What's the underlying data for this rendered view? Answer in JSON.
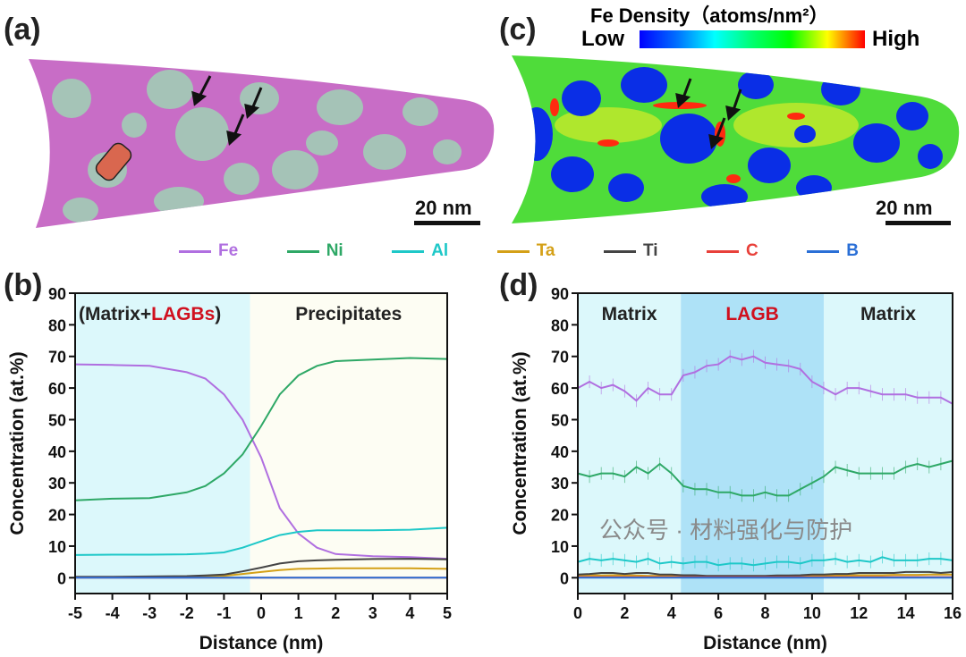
{
  "panels": {
    "a": "(a)",
    "b": "(b)",
    "c": "(c)",
    "d": "(d)"
  },
  "colorbar": {
    "title": "Fe Density（atoms/nm²）",
    "low": "Low",
    "high": "High",
    "colors": [
      "#0000ff",
      "#00ffff",
      "#00ff00",
      "#ffff00",
      "#ff0000"
    ]
  },
  "scalebar": {
    "a": "20 nm",
    "c": "20 nm"
  },
  "legend": [
    {
      "name": "Fe",
      "color": "#b06fe0"
    },
    {
      "name": "Ni",
      "color": "#2ea866"
    },
    {
      "name": "Al",
      "color": "#1ec8c8"
    },
    {
      "name": "Ta",
      "color": "#d4a017"
    },
    {
      "name": "Ti",
      "color": "#444444"
    },
    {
      "name": "C",
      "color": "#e8403a"
    },
    {
      "name": "B",
      "color": "#2a6fd6"
    }
  ],
  "watermark": "公众号 · 材料强化与防护",
  "chart_data": [
    {
      "type": "line",
      "panel": "(b)",
      "xlabel": "Distance (nm)",
      "ylabel": "Concentration (at.%)",
      "xlim": [
        -5,
        5
      ],
      "ylim": [
        -5,
        90
      ],
      "xticks": [
        -5,
        -4,
        -3,
        -2,
        -1,
        0,
        1,
        2,
        3,
        4,
        5
      ],
      "yticks": [
        0,
        10,
        20,
        30,
        40,
        50,
        60,
        70,
        80,
        90
      ],
      "regions": [
        {
          "label": "(Matrix+",
          "label_red": "LAGBs",
          "label_end": ")",
          "from": -5,
          "to": -0.3,
          "color": "#dcf8fb"
        },
        {
          "label": "Precipitates",
          "from": -0.3,
          "to": 5,
          "color": "#fdfdf3"
        }
      ],
      "x": [
        -5,
        -4,
        -3,
        -2,
        -1.5,
        -1,
        -0.5,
        0,
        0.5,
        1,
        1.5,
        2,
        3,
        4,
        5
      ],
      "series": [
        {
          "name": "Fe",
          "values": [
            67.5,
            67.3,
            67,
            65,
            63,
            58,
            50,
            38,
            22,
            14,
            9.5,
            7.5,
            6.8,
            6.5,
            6
          ]
        },
        {
          "name": "Ni",
          "values": [
            24.5,
            25,
            25.2,
            27,
            29,
            33,
            39,
            48,
            58,
            64,
            67,
            68.5,
            69,
            69.5,
            69.2
          ]
        },
        {
          "name": "Al",
          "values": [
            7.2,
            7.3,
            7.3,
            7.4,
            7.6,
            8,
            9.5,
            11.5,
            13.5,
            14.5,
            15,
            15,
            15,
            15.2,
            15.8
          ]
        },
        {
          "name": "Ta",
          "values": [
            0.2,
            0.2,
            0.3,
            0.4,
            0.5,
            0.6,
            1.2,
            1.8,
            2.4,
            2.8,
            2.9,
            3,
            3,
            3,
            2.8
          ]
        },
        {
          "name": "Ti",
          "values": [
            0.3,
            0.3,
            0.4,
            0.5,
            0.7,
            1,
            2,
            3.2,
            4.5,
            5.2,
            5.5,
            5.7,
            5.9,
            6,
            5.8
          ]
        },
        {
          "name": "C",
          "values": [
            0,
            0,
            0,
            0,
            0,
            0,
            0,
            0,
            0,
            0,
            0,
            0,
            0,
            0,
            0
          ]
        },
        {
          "name": "B",
          "values": [
            0,
            0,
            0,
            0,
            0,
            0,
            0,
            0,
            0,
            0,
            0,
            0,
            0,
            0,
            0
          ]
        }
      ]
    },
    {
      "type": "line",
      "panel": "(d)",
      "xlabel": "Distance (nm)",
      "ylabel": "Concentration (at.%)",
      "xlim": [
        0,
        16
      ],
      "ylim": [
        -5,
        90
      ],
      "xticks": [
        0,
        2,
        4,
        6,
        8,
        10,
        12,
        14,
        16
      ],
      "yticks": [
        0,
        10,
        20,
        30,
        40,
        50,
        60,
        70,
        80,
        90
      ],
      "error_bars": true,
      "regions": [
        {
          "label": "Matrix",
          "from": 0,
          "to": 4.4,
          "color": "#dcf8fb"
        },
        {
          "label_red": "LAGB",
          "from": 4.4,
          "to": 10.5,
          "color": "#aee2f7"
        },
        {
          "label": "Matrix",
          "from": 10.5,
          "to": 16,
          "color": "#dcf8fb"
        }
      ],
      "x": [
        0,
        0.5,
        1,
        1.5,
        2,
        2.5,
        3,
        3.5,
        4,
        4.5,
        5,
        5.5,
        6,
        6.5,
        7,
        7.5,
        8,
        8.5,
        9,
        9.5,
        10,
        10.5,
        11,
        11.5,
        12,
        12.5,
        13,
        13.5,
        14,
        14.5,
        15,
        15.5,
        16
      ],
      "series": [
        {
          "name": "Fe",
          "values": [
            60,
            62,
            60,
            61,
            59,
            56,
            60,
            58,
            58,
            64,
            65,
            67,
            67.5,
            70,
            69,
            70,
            68,
            67.5,
            67,
            66,
            62,
            60,
            58,
            60,
            60,
            59,
            58,
            58,
            58,
            57,
            57,
            57,
            55
          ]
        },
        {
          "name": "Ni",
          "values": [
            33,
            32,
            33,
            33,
            32,
            35,
            33,
            36,
            33,
            29,
            28,
            28,
            27,
            27,
            26,
            26,
            27,
            26,
            26,
            28,
            30,
            32,
            35,
            34,
            33,
            33,
            33,
            33,
            35,
            36,
            35,
            36,
            37
          ]
        },
        {
          "name": "Al",
          "values": [
            5,
            6,
            5.5,
            6,
            5.5,
            5,
            6,
            4.5,
            5,
            4.5,
            5,
            5,
            4,
            4.5,
            4.5,
            4,
            4.5,
            5,
            5,
            4.5,
            5.5,
            5.5,
            6,
            5,
            5.5,
            5,
            6.5,
            5.5,
            5.5,
            5.5,
            6,
            6,
            5.5
          ]
        },
        {
          "name": "Ta",
          "values": [
            0.7,
            0.8,
            0.7,
            0.8,
            0.7,
            0.7,
            0.6,
            0.6,
            0.6,
            0.5,
            0.5,
            0.5,
            0.5,
            0.5,
            0.5,
            0.5,
            0.5,
            0.5,
            0.5,
            0.5,
            0.6,
            0.6,
            0.7,
            0.7,
            0.8,
            0.8,
            0.8,
            0.9,
            0.9,
            0.9,
            1,
            1,
            1
          ]
        },
        {
          "name": "Ti",
          "values": [
            1,
            1.2,
            1.5,
            1.5,
            1.2,
            1.5,
            1.5,
            1,
            1,
            0.8,
            0.8,
            0.6,
            0.6,
            0.6,
            0.6,
            0.6,
            0.6,
            0.7,
            0.7,
            0.8,
            1,
            1,
            1.2,
            1.2,
            1.5,
            1.5,
            1.5,
            1.5,
            1.8,
            1.8,
            1.8,
            1.5,
            1.8
          ]
        },
        {
          "name": "C",
          "values": [
            0.2,
            0.2,
            0.2,
            0.2,
            0.2,
            0.2,
            0.2,
            0.2,
            0.2,
            0.2,
            0.2,
            0.2,
            0.2,
            0.2,
            0.2,
            0.2,
            0.2,
            0.2,
            0.2,
            0.2,
            0.2,
            0.2,
            0.2,
            0.2,
            0.2,
            0.2,
            0.2,
            0.2,
            0.2,
            0.2,
            0.2,
            0.2,
            0.2
          ]
        },
        {
          "name": "B",
          "values": [
            0,
            0,
            0,
            0,
            0,
            0,
            0,
            0,
            0,
            0,
            0,
            0,
            0,
            0,
            0,
            0,
            0,
            0,
            0,
            0,
            0,
            0,
            0,
            0,
            0,
            0,
            0,
            0,
            0,
            0,
            0,
            0,
            0
          ]
        }
      ]
    }
  ]
}
